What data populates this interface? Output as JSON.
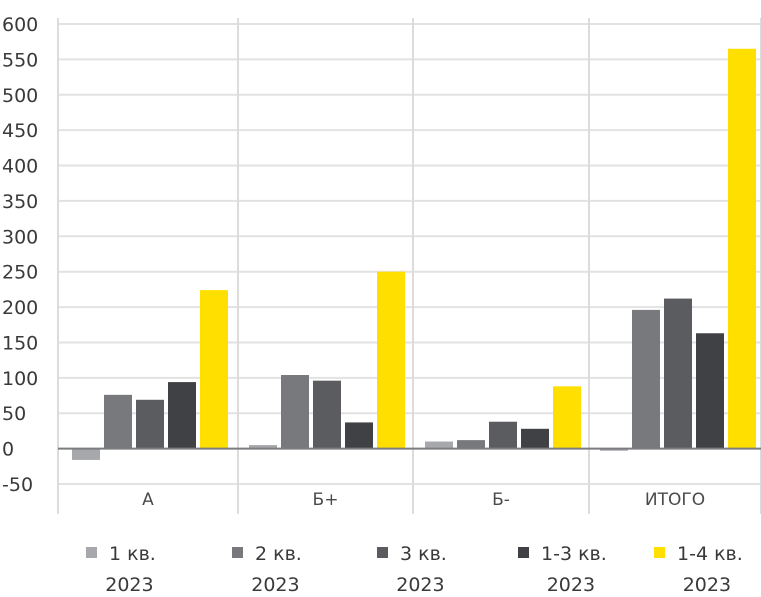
{
  "chart_data": {
    "type": "bar",
    "categories": [
      "А",
      "Б+",
      "Б-",
      "ИТОГО"
    ],
    "series": [
      {
        "name": "1 кв. 2023",
        "name_lines": [
          "1 кв.",
          "2023"
        ],
        "color": "#a6a8ab",
        "values": [
          -16,
          5,
          10,
          -3
        ]
      },
      {
        "name": "2 кв. 2023",
        "name_lines": [
          "2 кв.",
          "2023"
        ],
        "color": "#77797c",
        "values": [
          76,
          104,
          12,
          196
        ]
      },
      {
        "name": "3 кв. 2023",
        "name_lines": [
          "3 кв.",
          "2023"
        ],
        "color": "#5a5c5f",
        "values": [
          69,
          96,
          38,
          212
        ]
      },
      {
        "name": "1-3 кв. 2023",
        "name_lines": [
          "1-3 кв.",
          "2023"
        ],
        "color": "#3f4144",
        "values": [
          94,
          37,
          28,
          163
        ]
      },
      {
        "name": "1-4 кв. 2023",
        "name_lines": [
          "1-4 кв.",
          "2023"
        ],
        "color": "#ffdf00",
        "values": [
          224,
          250,
          88,
          565
        ]
      }
    ],
    "ylim": [
      -50,
      600
    ],
    "yticks": [
      "600",
      "550",
      "500",
      "450",
      "400",
      "350",
      "300",
      "250",
      "200",
      "150",
      "100",
      "50",
      "0",
      "-50"
    ],
    "grid": true,
    "legend_position": "bottom",
    "title": "",
    "xlabel": "",
    "ylabel": ""
  }
}
